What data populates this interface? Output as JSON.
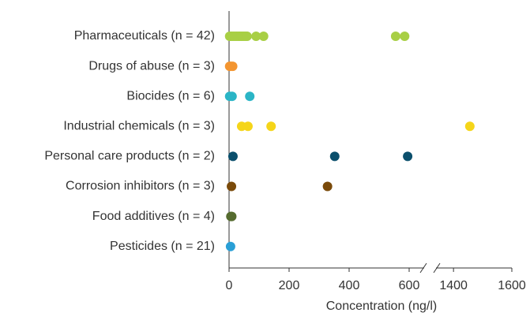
{
  "chart_data": {
    "type": "strip",
    "xlabel": "Concentration (ng/l)",
    "xlim": [
      0,
      1600
    ],
    "x_break": [
      650,
      1340
    ],
    "xticks": [
      0,
      200,
      400,
      600,
      1400,
      1600
    ],
    "series": [
      {
        "name": "Pharmaceuticals (n = 42)",
        "color": "#a8cf45",
        "values": [
          2,
          5,
          10,
          15,
          20,
          25,
          30,
          35,
          40,
          45,
          50,
          55,
          60,
          90,
          115,
          555,
          585
        ]
      },
      {
        "name": "Drugs of abuse (n = 3)",
        "color": "#f39530",
        "values": [
          2,
          6,
          12
        ]
      },
      {
        "name": "Biocides (n = 6)",
        "color": "#2bb5c6",
        "values": [
          2,
          10,
          69
        ]
      },
      {
        "name": "Industrial chemicals (n = 3)",
        "color": "#f5d519",
        "values": [
          42,
          63,
          140,
          1456
        ]
      },
      {
        "name": "Personal care products (n = 2)",
        "color": "#0b4f6c",
        "values": [
          13,
          352,
          595
        ]
      },
      {
        "name": "Corrosion inhibitors (n = 3)",
        "color": "#7a4a0a",
        "values": [
          8,
          328
        ]
      },
      {
        "name": "Food additives (n = 4)",
        "color": "#556b2f",
        "values": [
          6,
          9
        ]
      },
      {
        "name": "Pesticides (n = 21)",
        "color": "#2a9fd6",
        "values": [
          5
        ]
      }
    ]
  }
}
